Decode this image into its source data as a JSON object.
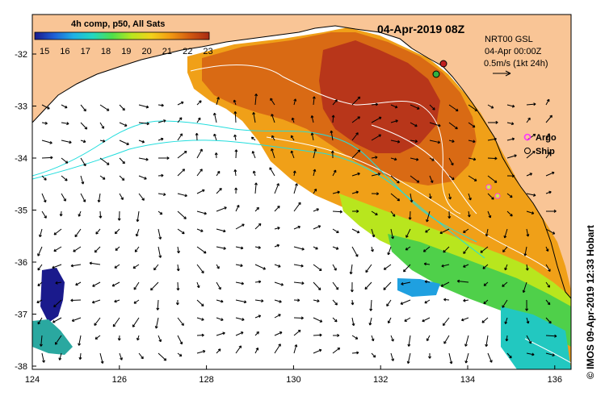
{
  "map": {
    "colorbar_title": "4h comp, p50, All Sats",
    "colorbar_ticks": [
      "15",
      "16",
      "17",
      "18",
      "19",
      "20",
      "21",
      "22",
      "23"
    ],
    "date_title": "04-Apr-2019 08Z",
    "model_label": "NRT00 GSL",
    "model_time": "04-Apr 00:00Z",
    "scale_label": "0.5m/s (1kt 24h)",
    "legend": {
      "argo": "Argo",
      "ship": "Ship"
    },
    "lat_ticks": [
      "-32",
      "-33",
      "-34",
      "-35",
      "-36",
      "-37",
      "-38"
    ],
    "lon_ticks": [
      "124",
      "126",
      "128",
      "130",
      "132",
      "134",
      "136"
    ],
    "credit": "© IMOS 09-Apr-2019 12:33 Hobart",
    "colors": {
      "land": "#f9c596",
      "ocean": "#ffffff",
      "altimetry_contour": "#22dddd",
      "argo": "#ff33ff"
    },
    "colorbar_stops": [
      "#1a1a8c",
      "#1f5fd6",
      "#1fb0e6",
      "#22d8c0",
      "#4fe04a",
      "#b8e61e",
      "#f2d21a",
      "#f29a12",
      "#d25a10",
      "#a82a14"
    ]
  }
}
